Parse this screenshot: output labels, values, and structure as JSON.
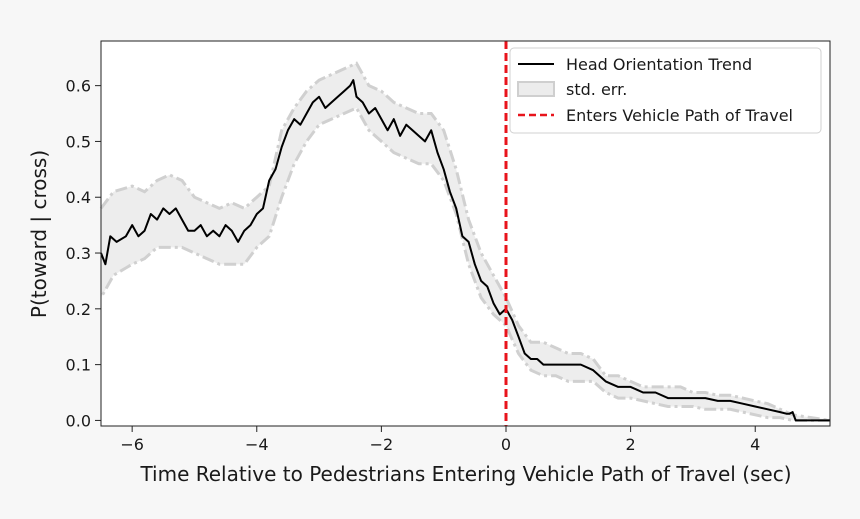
{
  "chart_data": {
    "type": "line",
    "title": "",
    "xlabel": "Time Relative to Pedestrians Entering Vehicle Path of Travel (sec)",
    "ylabel": "P(toward | cross)",
    "xlim": [
      -6.5,
      5.2
    ],
    "ylim": [
      -0.01,
      0.68
    ],
    "xticks": [
      -6,
      -4,
      -2,
      0,
      2,
      4
    ],
    "xtick_labels": [
      "−6",
      "−4",
      "−2",
      "0",
      "2",
      "4"
    ],
    "yticks": [
      0.0,
      0.1,
      0.2,
      0.3,
      0.4,
      0.5,
      0.6
    ],
    "ytick_labels": [
      "0.0",
      "0.1",
      "0.2",
      "0.3",
      "0.4",
      "0.5",
      "0.6"
    ],
    "legend_position": "top-right",
    "grid": false,
    "series": [
      {
        "name": "Head Orientation Trend",
        "color": "#000000",
        "x": [
          -6.5,
          -6.43,
          -6.35,
          -6.25,
          -6.1,
          -6.0,
          -5.9,
          -5.8,
          -5.7,
          -5.6,
          -5.5,
          -5.4,
          -5.3,
          -5.2,
          -5.1,
          -5.0,
          -4.9,
          -4.8,
          -4.7,
          -4.6,
          -4.5,
          -4.4,
          -4.3,
          -4.2,
          -4.1,
          -4.0,
          -3.9,
          -3.8,
          -3.7,
          -3.6,
          -3.5,
          -3.4,
          -3.3,
          -3.2,
          -3.1,
          -3.0,
          -2.9,
          -2.8,
          -2.7,
          -2.6,
          -2.5,
          -2.45,
          -2.4,
          -2.3,
          -2.2,
          -2.1,
          -2.0,
          -1.9,
          -1.8,
          -1.7,
          -1.6,
          -1.5,
          -1.4,
          -1.3,
          -1.2,
          -1.1,
          -1.0,
          -0.9,
          -0.8,
          -0.7,
          -0.6,
          -0.5,
          -0.4,
          -0.3,
          -0.2,
          -0.1,
          0.0,
          0.1,
          0.2,
          0.3,
          0.4,
          0.5,
          0.6,
          0.8,
          1.0,
          1.2,
          1.4,
          1.6,
          1.8,
          2.0,
          2.2,
          2.4,
          2.6,
          2.8,
          3.0,
          3.2,
          3.4,
          3.6,
          3.8,
          4.0,
          4.2,
          4.4,
          4.5,
          4.55,
          4.6,
          4.65,
          5.2
        ],
        "values": [
          0.3,
          0.28,
          0.33,
          0.32,
          0.33,
          0.35,
          0.33,
          0.34,
          0.37,
          0.36,
          0.38,
          0.37,
          0.38,
          0.36,
          0.34,
          0.34,
          0.35,
          0.33,
          0.34,
          0.33,
          0.35,
          0.34,
          0.32,
          0.34,
          0.35,
          0.37,
          0.38,
          0.43,
          0.45,
          0.49,
          0.52,
          0.54,
          0.53,
          0.55,
          0.57,
          0.58,
          0.56,
          0.57,
          0.58,
          0.59,
          0.6,
          0.61,
          0.58,
          0.57,
          0.55,
          0.56,
          0.54,
          0.52,
          0.54,
          0.51,
          0.53,
          0.52,
          0.51,
          0.5,
          0.52,
          0.48,
          0.45,
          0.41,
          0.38,
          0.33,
          0.32,
          0.28,
          0.25,
          0.24,
          0.21,
          0.19,
          0.2,
          0.18,
          0.15,
          0.12,
          0.11,
          0.11,
          0.1,
          0.1,
          0.1,
          0.1,
          0.09,
          0.07,
          0.06,
          0.06,
          0.05,
          0.05,
          0.04,
          0.04,
          0.04,
          0.04,
          0.035,
          0.035,
          0.03,
          0.025,
          0.02,
          0.015,
          0.012,
          0.012,
          0.015,
          0.0,
          0.0
        ]
      },
      {
        "name": "std. err.",
        "color": "#d0d0d0",
        "x": [
          -6.5,
          -6.3,
          -6.0,
          -5.8,
          -5.6,
          -5.4,
          -5.2,
          -5.0,
          -4.8,
          -4.6,
          -4.4,
          -4.2,
          -4.0,
          -3.8,
          -3.6,
          -3.4,
          -3.2,
          -3.0,
          -2.8,
          -2.6,
          -2.4,
          -2.2,
          -2.0,
          -1.8,
          -1.6,
          -1.4,
          -1.2,
          -1.0,
          -0.8,
          -0.6,
          -0.4,
          -0.2,
          0.0,
          0.2,
          0.4,
          0.6,
          0.8,
          1.0,
          1.2,
          1.4,
          1.6,
          1.8,
          2.0,
          2.2,
          2.4,
          2.6,
          2.8,
          3.0,
          3.2,
          3.4,
          3.6,
          3.8,
          4.0,
          4.2,
          4.4,
          4.6,
          5.2
        ],
        "upper": [
          0.38,
          0.41,
          0.42,
          0.41,
          0.43,
          0.44,
          0.43,
          0.4,
          0.39,
          0.38,
          0.39,
          0.38,
          0.4,
          0.42,
          0.52,
          0.56,
          0.59,
          0.61,
          0.62,
          0.63,
          0.64,
          0.6,
          0.59,
          0.57,
          0.56,
          0.55,
          0.55,
          0.52,
          0.45,
          0.36,
          0.3,
          0.26,
          0.22,
          0.17,
          0.14,
          0.14,
          0.13,
          0.12,
          0.12,
          0.11,
          0.08,
          0.08,
          0.07,
          0.06,
          0.06,
          0.06,
          0.06,
          0.05,
          0.05,
          0.045,
          0.045,
          0.04,
          0.035,
          0.03,
          0.02,
          0.01,
          0.0
        ],
        "lower": [
          0.22,
          0.26,
          0.28,
          0.29,
          0.31,
          0.31,
          0.31,
          0.3,
          0.29,
          0.28,
          0.28,
          0.28,
          0.31,
          0.33,
          0.4,
          0.46,
          0.5,
          0.53,
          0.54,
          0.55,
          0.56,
          0.52,
          0.5,
          0.48,
          0.47,
          0.46,
          0.46,
          0.43,
          0.37,
          0.28,
          0.22,
          0.19,
          0.17,
          0.12,
          0.09,
          0.08,
          0.08,
          0.07,
          0.07,
          0.07,
          0.05,
          0.04,
          0.04,
          0.035,
          0.03,
          0.025,
          0.025,
          0.025,
          0.02,
          0.02,
          0.02,
          0.015,
          0.01,
          0.005,
          0.005,
          0.0,
          0.0
        ]
      }
    ],
    "annotations": [
      {
        "name": "Enters Vehicle Path of Travel",
        "type": "vline",
        "x": 0,
        "color": "#e8141c",
        "style": "dashed"
      }
    ]
  }
}
